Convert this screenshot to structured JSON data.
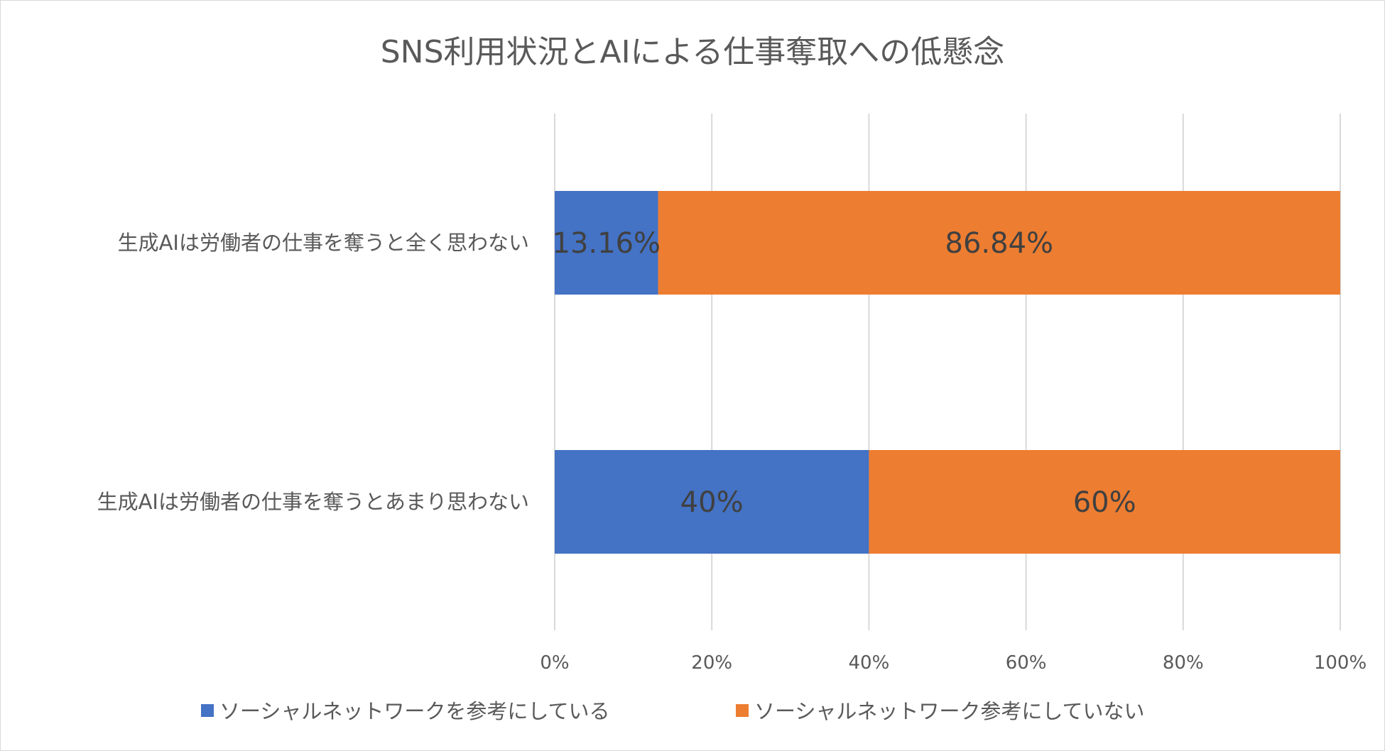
{
  "chart_data": {
    "type": "bar",
    "orientation": "horizontal",
    "stacked": "percent",
    "title": "SNS利用状況とAIによる仕事奪取への低懸念",
    "categories": [
      "生成AIは労働者の仕事を奪うと全く思わない",
      "生成AIは労働者の仕事を奪うとあまり思わない"
    ],
    "series": [
      {
        "name": "ソーシャルネットワークを参考にしている",
        "color": "#4472c4",
        "values": [
          13.16,
          40
        ],
        "labels": [
          "13.16%",
          "40%"
        ]
      },
      {
        "name": "ソーシャルネットワーク参考にしていない",
        "color": "#ed7d31",
        "values": [
          86.84,
          60
        ],
        "labels": [
          "86.84%",
          "60%"
        ]
      }
    ],
    "xlim": [
      0,
      100
    ],
    "xticks": [
      "0%",
      "20%",
      "40%",
      "60%",
      "80%",
      "100%"
    ],
    "grid": true,
    "legend_position": "bottom"
  }
}
